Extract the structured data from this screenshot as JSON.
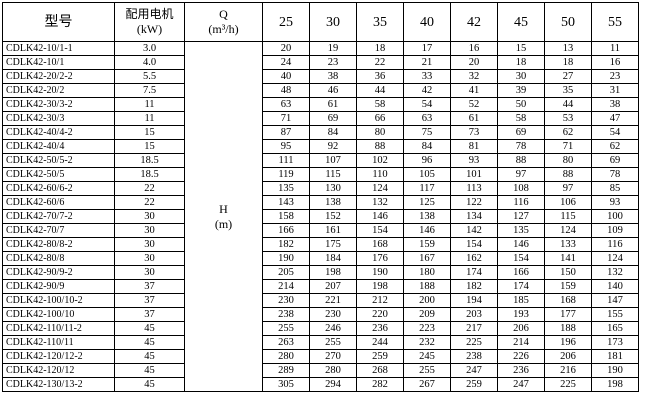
{
  "header": {
    "model": "型号",
    "motor": [
      "配用电机",
      "(kW)"
    ],
    "q": [
      "Q",
      "(m³/h)"
    ],
    "flows": [
      25,
      30,
      35,
      40,
      42,
      45,
      50,
      55
    ]
  },
  "h_label": [
    "H",
    "(m)"
  ],
  "rows": [
    {
      "model": "CDLK42-10/1-1",
      "kw": "3.0",
      "heads": [
        20,
        19,
        18,
        17,
        16,
        15,
        13,
        11
      ]
    },
    {
      "model": "CDLK42-10/1",
      "kw": "4.0",
      "heads": [
        24,
        23,
        22,
        21,
        20,
        18,
        18,
        16
      ]
    },
    {
      "model": "CDLK42-20/2-2",
      "kw": "5.5",
      "heads": [
        40,
        38,
        36,
        33,
        32,
        30,
        27,
        23
      ]
    },
    {
      "model": "CDLK42-20/2",
      "kw": "7.5",
      "heads": [
        48,
        46,
        44,
        42,
        41,
        39,
        35,
        31
      ]
    },
    {
      "model": "CDLK42-30/3-2",
      "kw": "11",
      "heads": [
        63,
        61,
        58,
        54,
        52,
        50,
        44,
        38
      ]
    },
    {
      "model": "CDLK42-30/3",
      "kw": "11",
      "heads": [
        71,
        69,
        66,
        63,
        61,
        58,
        53,
        47
      ]
    },
    {
      "model": "CDLK42-40/4-2",
      "kw": "15",
      "heads": [
        87,
        84,
        80,
        75,
        73,
        69,
        62,
        54
      ]
    },
    {
      "model": "CDLK42-40/4",
      "kw": "15",
      "heads": [
        95,
        92,
        88,
        84,
        81,
        78,
        71,
        62
      ]
    },
    {
      "model": "CDLK42-50/5-2",
      "kw": "18.5",
      "heads": [
        111,
        107,
        102,
        96,
        93,
        88,
        80,
        69
      ]
    },
    {
      "model": "CDLK42-50/5",
      "kw": "18.5",
      "heads": [
        119,
        115,
        110,
        105,
        101,
        97,
        88,
        78
      ]
    },
    {
      "model": "CDLK42-60/6-2",
      "kw": "22",
      "heads": [
        135,
        130,
        124,
        117,
        113,
        108,
        97,
        85
      ]
    },
    {
      "model": "CDLK42-60/6",
      "kw": "22",
      "heads": [
        143,
        138,
        132,
        125,
        122,
        116,
        106,
        93
      ]
    },
    {
      "model": "CDLK42-70/7-2",
      "kw": "30",
      "heads": [
        158,
        152,
        146,
        138,
        134,
        127,
        115,
        100
      ]
    },
    {
      "model": "CDLK42-70/7",
      "kw": "30",
      "heads": [
        166,
        161,
        154,
        146,
        142,
        135,
        124,
        109
      ]
    },
    {
      "model": "CDLK42-80/8-2",
      "kw": "30",
      "heads": [
        182,
        175,
        168,
        159,
        154,
        146,
        133,
        116
      ]
    },
    {
      "model": "CDLK42-80/8",
      "kw": "30",
      "heads": [
        190,
        184,
        176,
        167,
        162,
        154,
        141,
        124
      ]
    },
    {
      "model": "CDLK42-90/9-2",
      "kw": "30",
      "heads": [
        205,
        198,
        190,
        180,
        174,
        166,
        150,
        132
      ]
    },
    {
      "model": "CDLK42-90/9",
      "kw": "37",
      "heads": [
        214,
        207,
        198,
        188,
        182,
        174,
        159,
        140
      ]
    },
    {
      "model": "CDLK42-100/10-2",
      "kw": "37",
      "heads": [
        230,
        221,
        212,
        200,
        194,
        185,
        168,
        147
      ]
    },
    {
      "model": "CDLK42-100/10",
      "kw": "37",
      "heads": [
        238,
        230,
        220,
        209,
        203,
        193,
        177,
        155
      ]
    },
    {
      "model": "CDLK42-110/11-2",
      "kw": "45",
      "heads": [
        255,
        246,
        236,
        223,
        217,
        206,
        188,
        165
      ]
    },
    {
      "model": "CDLK42-110/11",
      "kw": "45",
      "heads": [
        263,
        255,
        244,
        232,
        225,
        214,
        196,
        173
      ]
    },
    {
      "model": "CDLK42-120/12-2",
      "kw": "45",
      "heads": [
        280,
        270,
        259,
        245,
        238,
        226,
        206,
        181
      ]
    },
    {
      "model": "CDLK42-120/12",
      "kw": "45",
      "heads": [
        289,
        280,
        268,
        255,
        247,
        236,
        216,
        190
      ]
    },
    {
      "model": "CDLK42-130/13-2",
      "kw": "45",
      "heads": [
        305,
        294,
        282,
        267,
        259,
        247,
        225,
        198
      ]
    }
  ]
}
